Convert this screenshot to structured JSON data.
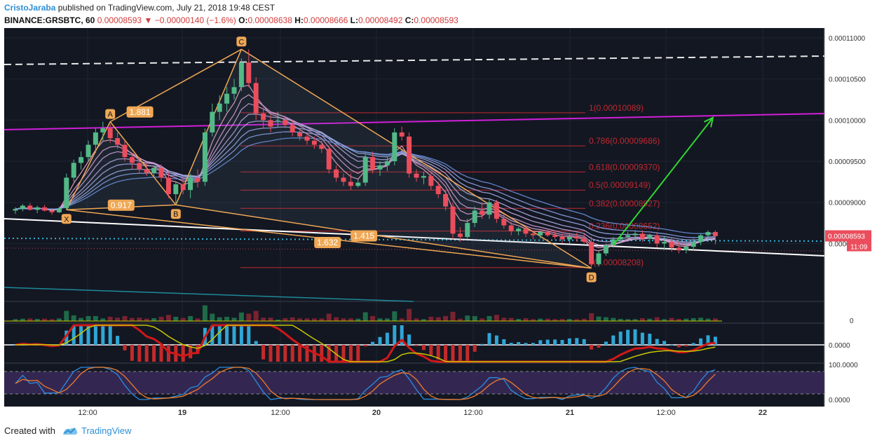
{
  "header": {
    "author": "CristoJaraba",
    "published_text": "published on TradingView.com, July 21, 2018 19:48 CEST",
    "symbol": "BINANCE:GRSBTC, 60",
    "last_price": "0.00008593",
    "change_arrow": "▼",
    "change": "−0.00000140 (−1.6%)",
    "o_label": "O:",
    "o": "0.00008638",
    "h_label": "H:",
    "h": "0.00008666",
    "l_label": "L:",
    "l": "0.00008492",
    "c_label": "C:",
    "c": "0.00008593"
  },
  "footer": {
    "created": "Created with",
    "brand": "TradingView"
  },
  "colors": {
    "background": "#131722",
    "grid": "#1f2433",
    "up": "#53b987",
    "down": "#eb4d5c",
    "harmonic": "#f0a855",
    "magenta_line": "#d01fd8",
    "fib": "#c0282f",
    "price_tag": "#eb4d5c",
    "arrow": "#30d630"
  },
  "chart_data": {
    "type": "candlestick",
    "price_axis_ticks": [
      "0.00011000",
      "0.00010500",
      "0.00010000",
      "0.00009500",
      "0.00009000",
      "0.00008500"
    ],
    "ylim": [
      7.95e-05,
      0.0001105
    ],
    "time_axis_ticks": [
      "12:00",
      "19",
      "12:00",
      "20",
      "12:00",
      "21",
      "12:00",
      "22"
    ],
    "current_price_label": "0.00008593",
    "countdown_label": "11:09",
    "harmonic_points": [
      {
        "label": "X",
        "price": 8.91e-05
      },
      {
        "label": "A",
        "price": 9.98e-05
      },
      {
        "label": "B",
        "price": 8.97e-05
      },
      {
        "label": "C",
        "price": 0.0001086
      },
      {
        "label": "D",
        "price": 8.2e-05
      }
    ],
    "harmonic_ratios": [
      "1.881",
      "0.917",
      "1.632",
      "1.415"
    ],
    "fib_levels": [
      {
        "label": "1(0.00010089)",
        "price": 0.00010089
      },
      {
        "label": "0.786(0.00009686)",
        "price": 9.686e-05
      },
      {
        "label": "0.618(0.00009370)",
        "price": 9.37e-05
      },
      {
        "label": "0.5(0.00009149)",
        "price": 9.149e-05
      },
      {
        "label": "0.382(0.00008927)",
        "price": 8.927e-05
      },
      {
        "label": "0.236(0.00008652)",
        "price": 8.652e-05
      },
      {
        "label": "0(0.00008208)",
        "price": 8.208e-05
      }
    ],
    "indicator_axis_labels": [
      "0",
      "0.0000",
      "100.0000",
      "0.0000"
    ],
    "candles": [
      [
        8.9e-05,
        8.94e-05,
        8.86e-05,
        8.92e-05
      ],
      [
        8.92e-05,
        8.98e-05,
        8.89e-05,
        8.96e-05
      ],
      [
        8.96e-05,
        8.99e-05,
        8.9e-05,
        8.91e-05
      ],
      [
        8.91e-05,
        8.96e-05,
        8.87e-05,
        8.94e-05
      ],
      [
        8.94e-05,
        8.97e-05,
        8.89e-05,
        8.9e-05
      ],
      [
        8.9e-05,
        8.93e-05,
        8.85e-05,
        8.88e-05
      ],
      [
        8.88e-05,
        8.95e-05,
        8.87e-05,
        8.93e-05
      ],
      [
        8.93e-05,
        9.35e-05,
        8.91e-05,
        9.3e-05
      ],
      [
        9.3e-05,
        9.52e-05,
        9.25e-05,
        9.48e-05
      ],
      [
        9.48e-05,
        9.62e-05,
        9.4e-05,
        9.55e-05
      ],
      [
        9.55e-05,
        9.75e-05,
        9.5e-05,
        9.7e-05
      ],
      [
        9.7e-05,
        9.9e-05,
        9.6e-05,
        9.85e-05
      ],
      [
        9.85e-05,
        9.98e-05,
        9.75e-05,
        9.9e-05
      ],
      [
        9.9e-05,
        9.95e-05,
        9.72e-05,
        9.78e-05
      ],
      [
        9.78e-05,
        9.85e-05,
        9.65e-05,
        9.7e-05
      ],
      [
        9.7e-05,
        9.75e-05,
        9.5e-05,
        9.55e-05
      ],
      [
        9.55e-05,
        9.6e-05,
        9.4e-05,
        9.48e-05
      ],
      [
        9.48e-05,
        9.55e-05,
        9.35e-05,
        9.4e-05
      ],
      [
        9.4e-05,
        9.48e-05,
        9.32e-05,
        9.36e-05
      ],
      [
        9.36e-05,
        9.45e-05,
        9.3e-05,
        9.42e-05
      ],
      [
        9.42e-05,
        9.46e-05,
        9.25e-05,
        9.3e-05
      ],
      [
        9.3e-05,
        9.36e-05,
        9.05e-05,
        9.1e-05
      ],
      [
        9.1e-05,
        9.25e-05,
        8.97e-05,
        9.22e-05
      ],
      [
        9.22e-05,
        9.3e-05,
        9.1e-05,
        9.15e-05
      ],
      [
        9.15e-05,
        9.35e-05,
        9.05e-05,
        9.3e-05
      ],
      [
        9.3e-05,
        9.4e-05,
        9.18e-05,
        9.25e-05
      ],
      [
        9.25e-05,
        9.9e-05,
        9.2e-05,
        9.85e-05
      ],
      [
        9.85e-05,
        0.000102,
        9.8e-05,
        0.000101
      ],
      [
        0.000101,
        0.000103,
        0.0001,
        0.000102
      ],
      [
        0.000102,
        0.000104,
        0.000101,
        0.0001032
      ],
      [
        0.0001032,
        0.000105,
        0.0001025,
        0.000104
      ],
      [
        0.000104,
        0.0001075,
        0.0001035,
        0.000107
      ],
      [
        0.000107,
        0.0001086,
        0.000104,
        0.0001045
      ],
      [
        0.0001045,
        0.0001052,
        0.0001,
        0.0001008
      ],
      [
        0.0001008,
        0.0001015,
        9.9e-05,
        0.0001
      ],
      [
        0.0001,
        0.0001006,
        9.85e-05,
        9.92e-05
      ],
      [
        0.0001,
        0.000101,
        9.92e-05,
        0.0001
      ],
      [
        0.0001,
        0.0001005,
        9.9e-05,
        9.94e-05
      ],
      [
        9.94e-05,
        0.0001,
        9.8e-05,
        9.85e-05
      ],
      [
        9.85e-05,
        9.9e-05,
        9.75e-05,
        9.8e-05
      ],
      [
        9.8e-05,
        9.85e-05,
        9.7e-05,
        9.75e-05
      ],
      [
        9.75e-05,
        9.8e-05,
        9.65e-05,
        9.7e-05
      ],
      [
        9.7e-05,
        9.75e-05,
        9.6e-05,
        9.65e-05
      ],
      [
        9.65e-05,
        9.68e-05,
        9.35e-05,
        9.4e-05
      ],
      [
        9.4e-05,
        9.45e-05,
        9.25e-05,
        9.3e-05
      ],
      [
        9.3e-05,
        9.35e-05,
        9.2e-05,
        9.25e-05
      ],
      [
        9.25e-05,
        9.35e-05,
        9.15e-05,
        9.2e-05
      ],
      [
        9.2e-05,
        9.28e-05,
        9.18e-05,
        9.24e-05
      ],
      [
        9.24e-05,
        9.6e-05,
        9.2e-05,
        9.55e-05
      ],
      [
        9.55e-05,
        9.62e-05,
        9.35e-05,
        9.4e-05
      ],
      [
        9.4e-05,
        9.5e-05,
        9.32e-05,
        9.45e-05
      ],
      [
        9.45e-05,
        9.55e-05,
        9.38e-05,
        9.5e-05
      ],
      [
        9.5e-05,
        9.9e-05,
        9.45e-05,
        9.85e-05
      ],
      [
        9.85e-05,
        9.92e-05,
        9.75e-05,
        9.8e-05
      ],
      [
        9.8e-05,
        9.85e-05,
        9.3e-05,
        9.35e-05
      ],
      [
        9.35e-05,
        9.4e-05,
        9.25e-05,
        9.3e-05
      ],
      [
        9.3e-05,
        9.37e-05,
        9.22e-05,
        9.32e-05
      ],
      [
        9.32e-05,
        9.36e-05,
        9.15e-05,
        9.2e-05
      ],
      [
        9.2e-05,
        9.25e-05,
        9.05e-05,
        9.1e-05
      ],
      [
        9.1e-05,
        9.15e-05,
        8.9e-05,
        8.95e-05
      ],
      [
        8.95e-05,
        9e-05,
        8.55e-05,
        8.62e-05
      ],
      [
        8.62e-05,
        8.7e-05,
        8.52e-05,
        8.58e-05
      ],
      [
        8.58e-05,
        8.8e-05,
        8.55e-05,
        8.75e-05
      ],
      [
        8.75e-05,
        8.95e-05,
        8.7e-05,
        8.9e-05
      ],
      [
        8.9e-05,
        9e-05,
        8.8e-05,
        8.85e-05
      ],
      [
        8.85e-05,
        9.05e-05,
        8.8e-05,
        9e-05
      ],
      [
        9e-05,
        9.03e-05,
        8.75e-05,
        8.8e-05
      ],
      [
        8.8e-05,
        8.86e-05,
        8.68e-05,
        8.72e-05
      ],
      [
        8.72e-05,
        8.76e-05,
        8.6e-05,
        8.65e-05
      ],
      [
        8.65e-05,
        8.7e-05,
        8.6e-05,
        8.68e-05
      ],
      [
        8.68e-05,
        8.72e-05,
        8.58e-05,
        8.62e-05
      ],
      [
        8.62e-05,
        8.66e-05,
        8.55e-05,
        8.6e-05
      ],
      [
        8.6e-05,
        8.66e-05,
        8.56e-05,
        8.64e-05
      ],
      [
        8.64e-05,
        8.68e-05,
        8.58e-05,
        8.6e-05
      ],
      [
        8.6e-05,
        8.66e-05,
        8.55e-05,
        8.58e-05
      ],
      [
        8.58e-05,
        8.62e-05,
        8.5e-05,
        8.55e-05
      ],
      [
        8.55e-05,
        8.62e-05,
        8.5e-05,
        8.58e-05
      ],
      [
        8.58e-05,
        8.63e-05,
        8.52e-05,
        8.56e-05
      ],
      [
        8.56e-05,
        8.62e-05,
        8.5e-05,
        8.52e-05
      ],
      [
        8.52e-05,
        8.58e-05,
        8.2e-05,
        8.25e-05
      ],
      [
        8.25e-05,
        8.4e-05,
        8.22e-05,
        8.38e-05
      ],
      [
        8.38e-05,
        8.5e-05,
        8.35e-05,
        8.48e-05
      ],
      [
        8.48e-05,
        8.58e-05,
        8.45e-05,
        8.55e-05
      ],
      [
        8.55e-05,
        8.62e-05,
        8.5e-05,
        8.58e-05
      ],
      [
        8.58e-05,
        8.64e-05,
        8.52e-05,
        8.6e-05
      ],
      [
        8.6e-05,
        8.66e-05,
        8.54e-05,
        8.62e-05
      ],
      [
        8.62e-05,
        8.66e-05,
        8.52e-05,
        8.56e-05
      ],
      [
        8.56e-05,
        8.62e-05,
        8.5e-05,
        8.6e-05
      ],
      [
        8.6e-05,
        8.64e-05,
        8.45e-05,
        8.5e-05
      ],
      [
        8.5e-05,
        8.58e-05,
        8.42e-05,
        8.52e-05
      ],
      [
        8.52e-05,
        8.58e-05,
        8.4e-05,
        8.45e-05
      ],
      [
        8.45e-05,
        8.52e-05,
        8.38e-05,
        8.42e-05
      ],
      [
        8.42e-05,
        8.5e-05,
        8.38e-05,
        8.46e-05
      ],
      [
        8.46e-05,
        8.56e-05,
        8.42e-05,
        8.52e-05
      ],
      [
        8.52e-05,
        8.62e-05,
        8.48e-05,
        8.6e-05
      ],
      [
        8.6e-05,
        8.66e-05,
        8.52e-05,
        8.64e-05
      ],
      [
        8.64e-05,
        8.66e-05,
        8.49e-05,
        8.59e-05
      ]
    ]
  }
}
